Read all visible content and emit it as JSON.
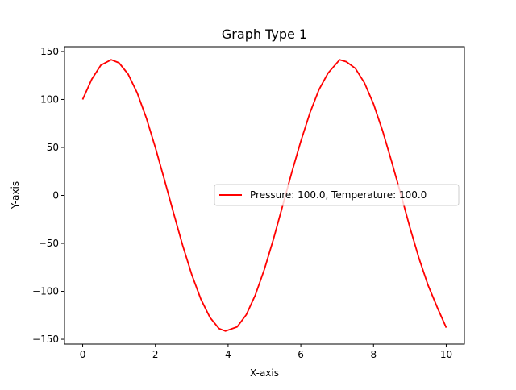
{
  "chart_data": {
    "type": "line",
    "title": "Graph Type 1",
    "xlabel": "X-axis",
    "ylabel": "Y-axis",
    "xlim": [
      -0.5,
      10.5
    ],
    "ylim": [
      -155,
      155
    ],
    "xticks": [
      0,
      2,
      4,
      6,
      8,
      10
    ],
    "xtick_labels": [
      "0",
      "2",
      "4",
      "6",
      "8",
      "10"
    ],
    "yticks": [
      -150,
      -100,
      -50,
      0,
      50,
      100,
      150
    ],
    "ytick_labels": [
      "−150",
      "−100",
      "−50",
      "0",
      "50",
      "100",
      "150"
    ],
    "grid": false,
    "legend_position": "center-right",
    "series": [
      {
        "name": "Pressure: 100.0, Temperature: 100.0",
        "color": "#ff0000",
        "x": [
          0,
          0.25,
          0.5,
          0.785,
          1,
          1.25,
          1.5,
          1.75,
          2,
          2.25,
          2.5,
          2.75,
          3,
          3.25,
          3.5,
          3.75,
          3.927,
          4.25,
          4.5,
          4.75,
          5,
          5.25,
          5.5,
          5.75,
          6,
          6.25,
          6.5,
          6.75,
          7.069,
          7.25,
          7.5,
          7.75,
          8,
          8.25,
          8.5,
          8.75,
          9,
          9.25,
          9.5,
          9.75,
          10
        ],
        "y": [
          100,
          121.1,
          135.8,
          141.4,
          138.2,
          126.4,
          106.8,
          80.7,
          49.9,
          16.2,
          -18.5,
          -52.0,
          -82.5,
          -108.1,
          -127.2,
          -138.8,
          -141.4,
          -137.0,
          -124.3,
          -103.8,
          -76.9,
          -45.2,
          -10.9,
          23.7,
          56.4,
          86.0,
          110.2,
          127.5,
          141.4,
          139.4,
          132.5,
          117.4,
          95.3,
          67.4,
          35.1,
          1.5,
          -33.4,
          -65.4,
          -93.6,
          -116.4,
          -137.9
        ]
      }
    ]
  }
}
